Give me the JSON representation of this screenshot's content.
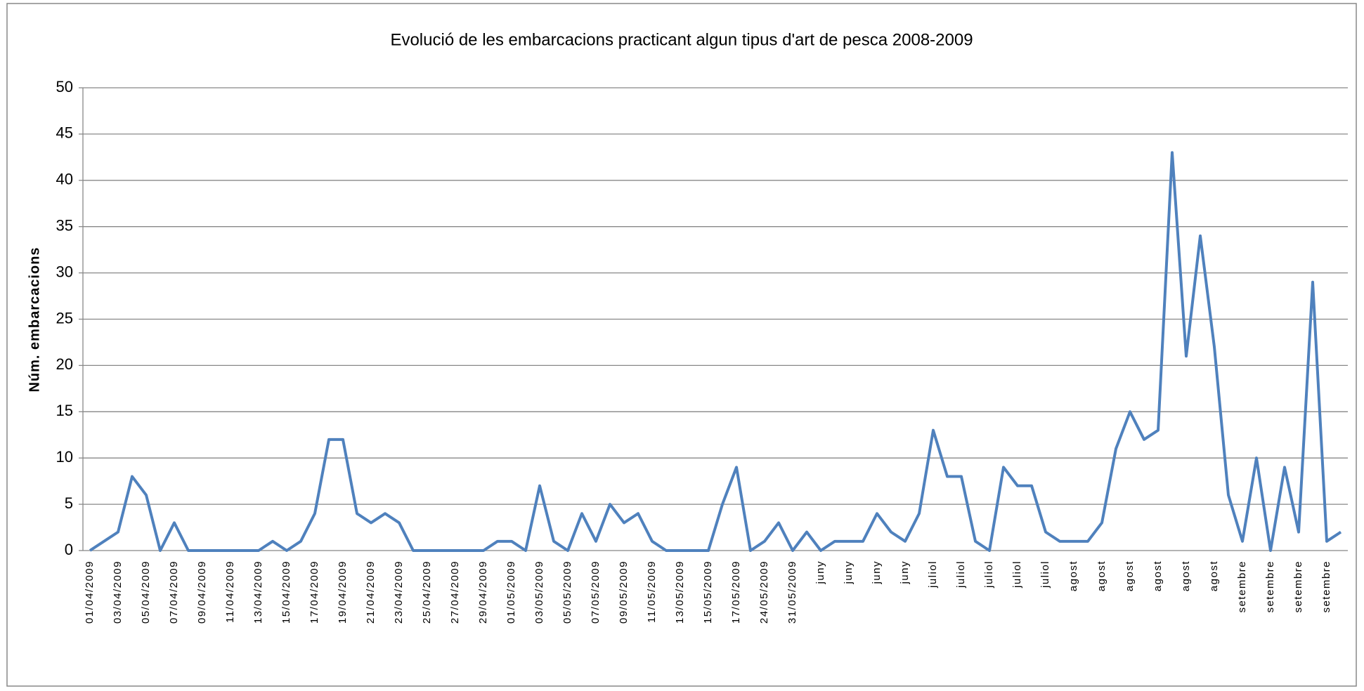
{
  "chart_data": {
    "type": "line",
    "title": "Evolució de les embarcacions practicant algun tipus d'art de pesca 2008-2009",
    "y_label": "Núm. embarcacions",
    "categories": [
      "01/04/2009",
      null,
      "03/04/2009",
      null,
      "05/04/2009",
      null,
      "07/04/2009",
      null,
      "09/04/2009",
      null,
      "11/04/2009",
      null,
      "13/04/2009",
      null,
      "15/04/2009",
      null,
      "17/04/2009",
      null,
      "19/04/2009",
      null,
      "21/04/2009",
      null,
      "23/04/2009",
      null,
      "25/04/2009",
      null,
      "27/04/2009",
      null,
      "29/04/2009",
      null,
      "01/05/2009",
      null,
      "03/05/2009",
      null,
      "05/05/2009",
      null,
      "07/05/2009",
      null,
      "09/05/2009",
      null,
      "11/05/2009",
      null,
      "13/05/2009",
      null,
      "15/05/2009",
      null,
      "17/05/2009",
      null,
      "24/05/2009",
      null,
      "31/05/2009",
      null,
      "juny",
      null,
      "juny",
      null,
      "juny",
      null,
      "juny",
      null,
      "juliol",
      null,
      "juliol",
      null,
      "juliol",
      null,
      "juliol",
      null,
      "juliol",
      null,
      "agost",
      null,
      "agost",
      null,
      "agost",
      null,
      "agost",
      null,
      "agost",
      null,
      "agost",
      null,
      "setembre",
      null,
      "setembre",
      null,
      "setembre",
      null,
      "setembre",
      null
    ],
    "series": [
      {
        "color": "#4f81bd",
        "values": [
          0,
          1,
          2,
          8,
          6,
          0,
          3,
          0,
          0,
          0,
          0,
          0,
          0,
          1,
          0,
          1,
          4,
          12,
          12,
          4,
          3,
          4,
          3,
          0,
          0,
          0,
          0,
          0,
          0,
          1,
          1,
          0,
          7,
          1,
          0,
          4,
          1,
          5,
          3,
          4,
          1,
          0,
          0,
          0,
          0,
          5,
          9,
          0,
          1,
          3,
          0,
          2,
          0,
          1,
          1,
          1,
          4,
          2,
          1,
          4,
          13,
          8,
          8,
          1,
          0,
          9,
          7,
          7,
          2,
          1,
          1,
          1,
          3,
          11,
          15,
          12,
          13,
          43,
          21,
          34,
          22,
          6,
          1,
          10,
          0,
          9,
          2,
          29,
          1,
          2
        ]
      }
    ],
    "ylim": [
      0,
      50
    ],
    "yticks": [
      0,
      5,
      10,
      15,
      20,
      25,
      30,
      35,
      40,
      45,
      50
    ],
    "grid": true
  }
}
